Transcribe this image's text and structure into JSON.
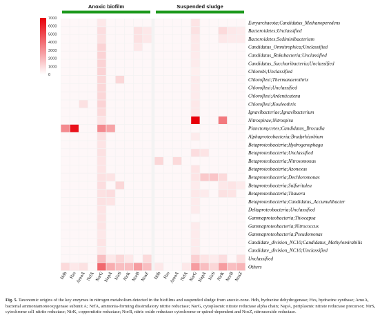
{
  "chart_data": {
    "type": "heatmap",
    "groups": [
      "Anoxic biofilm",
      "Suspended sludge"
    ],
    "group_color": "#1e9a1e",
    "columns": [
      "Hdh",
      "Hzs",
      "AmoA",
      "NrfA",
      "NarG",
      "NapA",
      "NirS",
      "NirK",
      "NorB",
      "NosZ"
    ],
    "rows": [
      "Euryarchaeota;Candidatus_Methanoperedens",
      "Bacteroidetes;Unclassified",
      "Bacteroidetes;Sediminibacterium",
      "Candidatus_Omnitrophica;Unclassified",
      "Candidatus_Rokubacteria;Unclassified",
      "Candidatus_Saccharibacteria;Unclassified",
      "Chlorobi;Unclassified",
      "Chloroflexi;Thermanaerothrix",
      "Chloroflexi;Unclassified",
      "Chloroflexi;Ardenticatena",
      "Chloroflexi;Kouleothrix",
      "Ignavibacteriae;Ignavibacterium",
      "Nitrospirae;Nitrospira",
      "Planctomycetes;Candidatus_Brocadia",
      "Alphaproteobacteria;Bradyrhizobium",
      "Betaproteobacteria;Hydrogenophaga",
      "Betaproteobacteria;Unclassified",
      "Betaproteobacteria;Nitrosomonas",
      "Betaproteobacteria;Azonexus",
      "Betaproteobacteria;Dechloromonas",
      "Betaproteobacteria;Sulfuritalea",
      "Betaproteobacteria;Thauera",
      "Betaproteobacteria;Candidatus_Accumulibacter",
      "Deltaproteobacteria;Unclassified",
      "Gammaproteobacteria;Thiocapsa",
      "Gammaproteobacteria;Nitrococcus",
      "Gammaproteobacteria;Pseudomonas",
      "Candidate_division_NC10;Candidatus_Methylomirabilis",
      "Candidate_division_NC10;Unclassified",
      "Unclassified",
      "Others"
    ],
    "color_scale": {
      "min": 0,
      "max": 7000,
      "low": "#ffffff",
      "high": "#e8000a"
    },
    "legend_ticks": [
      7000,
      6000,
      5000,
      4000,
      3000,
      2000,
      1000,
      0
    ],
    "values": [
      [
        0,
        0,
        0,
        0,
        300,
        0,
        0,
        0,
        0,
        0,
        0,
        0,
        0,
        0,
        400,
        0,
        0,
        0,
        0,
        0
      ],
      [
        0,
        0,
        0,
        0,
        600,
        0,
        0,
        0,
        500,
        300,
        0,
        0,
        0,
        0,
        500,
        0,
        0,
        700,
        300,
        200
      ],
      [
        0,
        0,
        0,
        0,
        500,
        0,
        0,
        0,
        500,
        300,
        0,
        0,
        0,
        0,
        300,
        0,
        0,
        300,
        200,
        200
      ],
      [
        0,
        0,
        0,
        0,
        900,
        0,
        0,
        0,
        300,
        0,
        0,
        0,
        0,
        0,
        300,
        0,
        0,
        0,
        0,
        0
      ],
      [
        0,
        0,
        0,
        0,
        900,
        0,
        0,
        0,
        0,
        0,
        0,
        0,
        0,
        0,
        200,
        0,
        0,
        0,
        0,
        0
      ],
      [
        0,
        0,
        0,
        0,
        900,
        0,
        0,
        0,
        0,
        0,
        0,
        0,
        0,
        0,
        200,
        0,
        0,
        0,
        0,
        0
      ],
      [
        0,
        0,
        0,
        0,
        900,
        0,
        0,
        0,
        0,
        0,
        0,
        0,
        0,
        0,
        100,
        0,
        0,
        0,
        0,
        0
      ],
      [
        0,
        0,
        0,
        0,
        800,
        0,
        800,
        0,
        0,
        0,
        0,
        0,
        0,
        0,
        200,
        0,
        0,
        0,
        0,
        0
      ],
      [
        0,
        0,
        0,
        0,
        800,
        0,
        0,
        0,
        0,
        0,
        0,
        0,
        0,
        0,
        200,
        0,
        0,
        0,
        0,
        0
      ],
      [
        0,
        0,
        0,
        0,
        800,
        0,
        0,
        0,
        0,
        0,
        0,
        0,
        0,
        0,
        200,
        0,
        0,
        0,
        0,
        0
      ],
      [
        0,
        0,
        500,
        0,
        900,
        0,
        0,
        0,
        0,
        0,
        0,
        0,
        0,
        0,
        300,
        0,
        0,
        0,
        0,
        0
      ],
      [
        0,
        0,
        0,
        0,
        700,
        0,
        0,
        0,
        0,
        0,
        0,
        0,
        0,
        0,
        300,
        0,
        0,
        0,
        0,
        0
      ],
      [
        0,
        0,
        0,
        0,
        400,
        0,
        0,
        0,
        0,
        0,
        0,
        0,
        0,
        0,
        7000,
        0,
        0,
        3500,
        0,
        0
      ],
      [
        3000,
        6500,
        0,
        0,
        3000,
        2300,
        0,
        0,
        0,
        0,
        0,
        0,
        0,
        0,
        0,
        0,
        0,
        0,
        0,
        0
      ],
      [
        0,
        0,
        0,
        0,
        500,
        0,
        0,
        0,
        0,
        0,
        0,
        0,
        0,
        0,
        200,
        0,
        0,
        0,
        0,
        0
      ],
      [
        0,
        0,
        0,
        0,
        400,
        0,
        0,
        0,
        0,
        0,
        0,
        0,
        0,
        0,
        0,
        0,
        0,
        0,
        0,
        0
      ],
      [
        0,
        0,
        0,
        0,
        500,
        0,
        0,
        0,
        0,
        0,
        0,
        0,
        0,
        0,
        600,
        400,
        0,
        0,
        0,
        0
      ],
      [
        0,
        0,
        0,
        0,
        400,
        0,
        0,
        0,
        0,
        0,
        800,
        0,
        700,
        0,
        0,
        0,
        0,
        0,
        0,
        0
      ],
      [
        0,
        0,
        0,
        0,
        400,
        0,
        0,
        0,
        0,
        0,
        0,
        0,
        0,
        0,
        400,
        0,
        0,
        0,
        0,
        0
      ],
      [
        0,
        0,
        0,
        0,
        500,
        400,
        0,
        0,
        0,
        0,
        0,
        0,
        0,
        0,
        400,
        1200,
        1300,
        700,
        0,
        0
      ],
      [
        0,
        0,
        0,
        0,
        600,
        0,
        800,
        0,
        0,
        0,
        0,
        0,
        0,
        0,
        200,
        0,
        0,
        300,
        400,
        200
      ],
      [
        0,
        0,
        0,
        0,
        500,
        600,
        0,
        0,
        0,
        0,
        0,
        0,
        0,
        0,
        300,
        200,
        0,
        500,
        400,
        0
      ],
      [
        0,
        0,
        0,
        0,
        500,
        400,
        0,
        0,
        0,
        0,
        0,
        0,
        0,
        0,
        200,
        0,
        0,
        0,
        0,
        0
      ],
      [
        0,
        0,
        0,
        0,
        400,
        0,
        0,
        0,
        0,
        0,
        0,
        0,
        0,
        0,
        200,
        0,
        0,
        0,
        0,
        0
      ],
      [
        0,
        0,
        0,
        0,
        400,
        0,
        0,
        0,
        0,
        0,
        0,
        0,
        0,
        0,
        0,
        0,
        0,
        0,
        0,
        0
      ],
      [
        0,
        0,
        0,
        0,
        400,
        0,
        0,
        0,
        0,
        0,
        0,
        0,
        0,
        0,
        200,
        0,
        0,
        0,
        0,
        0
      ],
      [
        0,
        0,
        0,
        0,
        300,
        0,
        0,
        0,
        0,
        0,
        0,
        0,
        0,
        0,
        200,
        0,
        0,
        0,
        0,
        0
      ],
      [
        0,
        0,
        0,
        0,
        400,
        0,
        0,
        0,
        0,
        0,
        0,
        0,
        0,
        0,
        200,
        0,
        0,
        0,
        0,
        0
      ],
      [
        0,
        0,
        0,
        0,
        300,
        0,
        0,
        0,
        0,
        0,
        0,
        0,
        0,
        0,
        200,
        0,
        0,
        0,
        0,
        0
      ],
      [
        0,
        0,
        0,
        0,
        1500,
        300,
        800,
        300,
        0,
        700,
        0,
        0,
        0,
        0,
        1000,
        400,
        200,
        600,
        0,
        500
      ],
      [
        700,
        300,
        500,
        0,
        4000,
        2000,
        1500,
        1500,
        2500,
        1500,
        300,
        0,
        0,
        300,
        2500,
        1500,
        800,
        2500,
        1500,
        1800
      ]
    ]
  },
  "caption": {
    "label": "Fig. 5.",
    "text": "Taxonomic origins of the key enzymes in nitrogen metabolism detected in the biofilms and suspended sludge from anoxic-zone. Hdh, hydrazine dehydrogenase; Hzs, hydrazine synthase; AmoA, bacterial ammoniamonooxygenase subunit A; NrfA, ammonia-forming dissimilatory nitrite reductase; NarG, cytoplasmic nitrate reductase alpha chain; NapA, periplasmic nitrate reductase precursor; NirS, cytochrome cd1 nitrite reductase; NirK, coppernitrite reductase; NorB, nitric oxide reductase cytochrome or quinol-dependent and NosZ, nitrousoxide reductase."
  }
}
